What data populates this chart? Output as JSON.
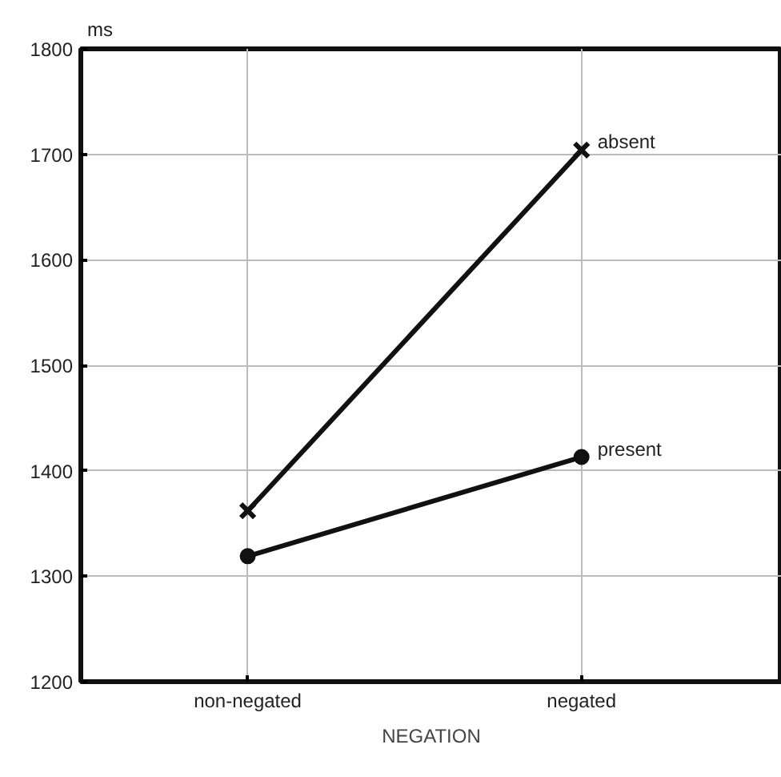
{
  "chart_data": {
    "type": "line",
    "ylabel": "ms",
    "xlabel": "NEGATION",
    "categories": [
      "non-negated",
      "negated"
    ],
    "series": [
      {
        "name": "absent",
        "color": "#111111",
        "values": [
          1362,
          1704
        ],
        "marker": "cross"
      },
      {
        "name": "present",
        "color": "#111111",
        "values": [
          1319,
          1413
        ],
        "marker": "circle"
      }
    ],
    "ylim": [
      1200,
      1800
    ],
    "yticks": [
      1200,
      1300,
      1400,
      1500,
      1600,
      1700,
      1800
    ],
    "grid": true,
    "line_style": "solid"
  }
}
